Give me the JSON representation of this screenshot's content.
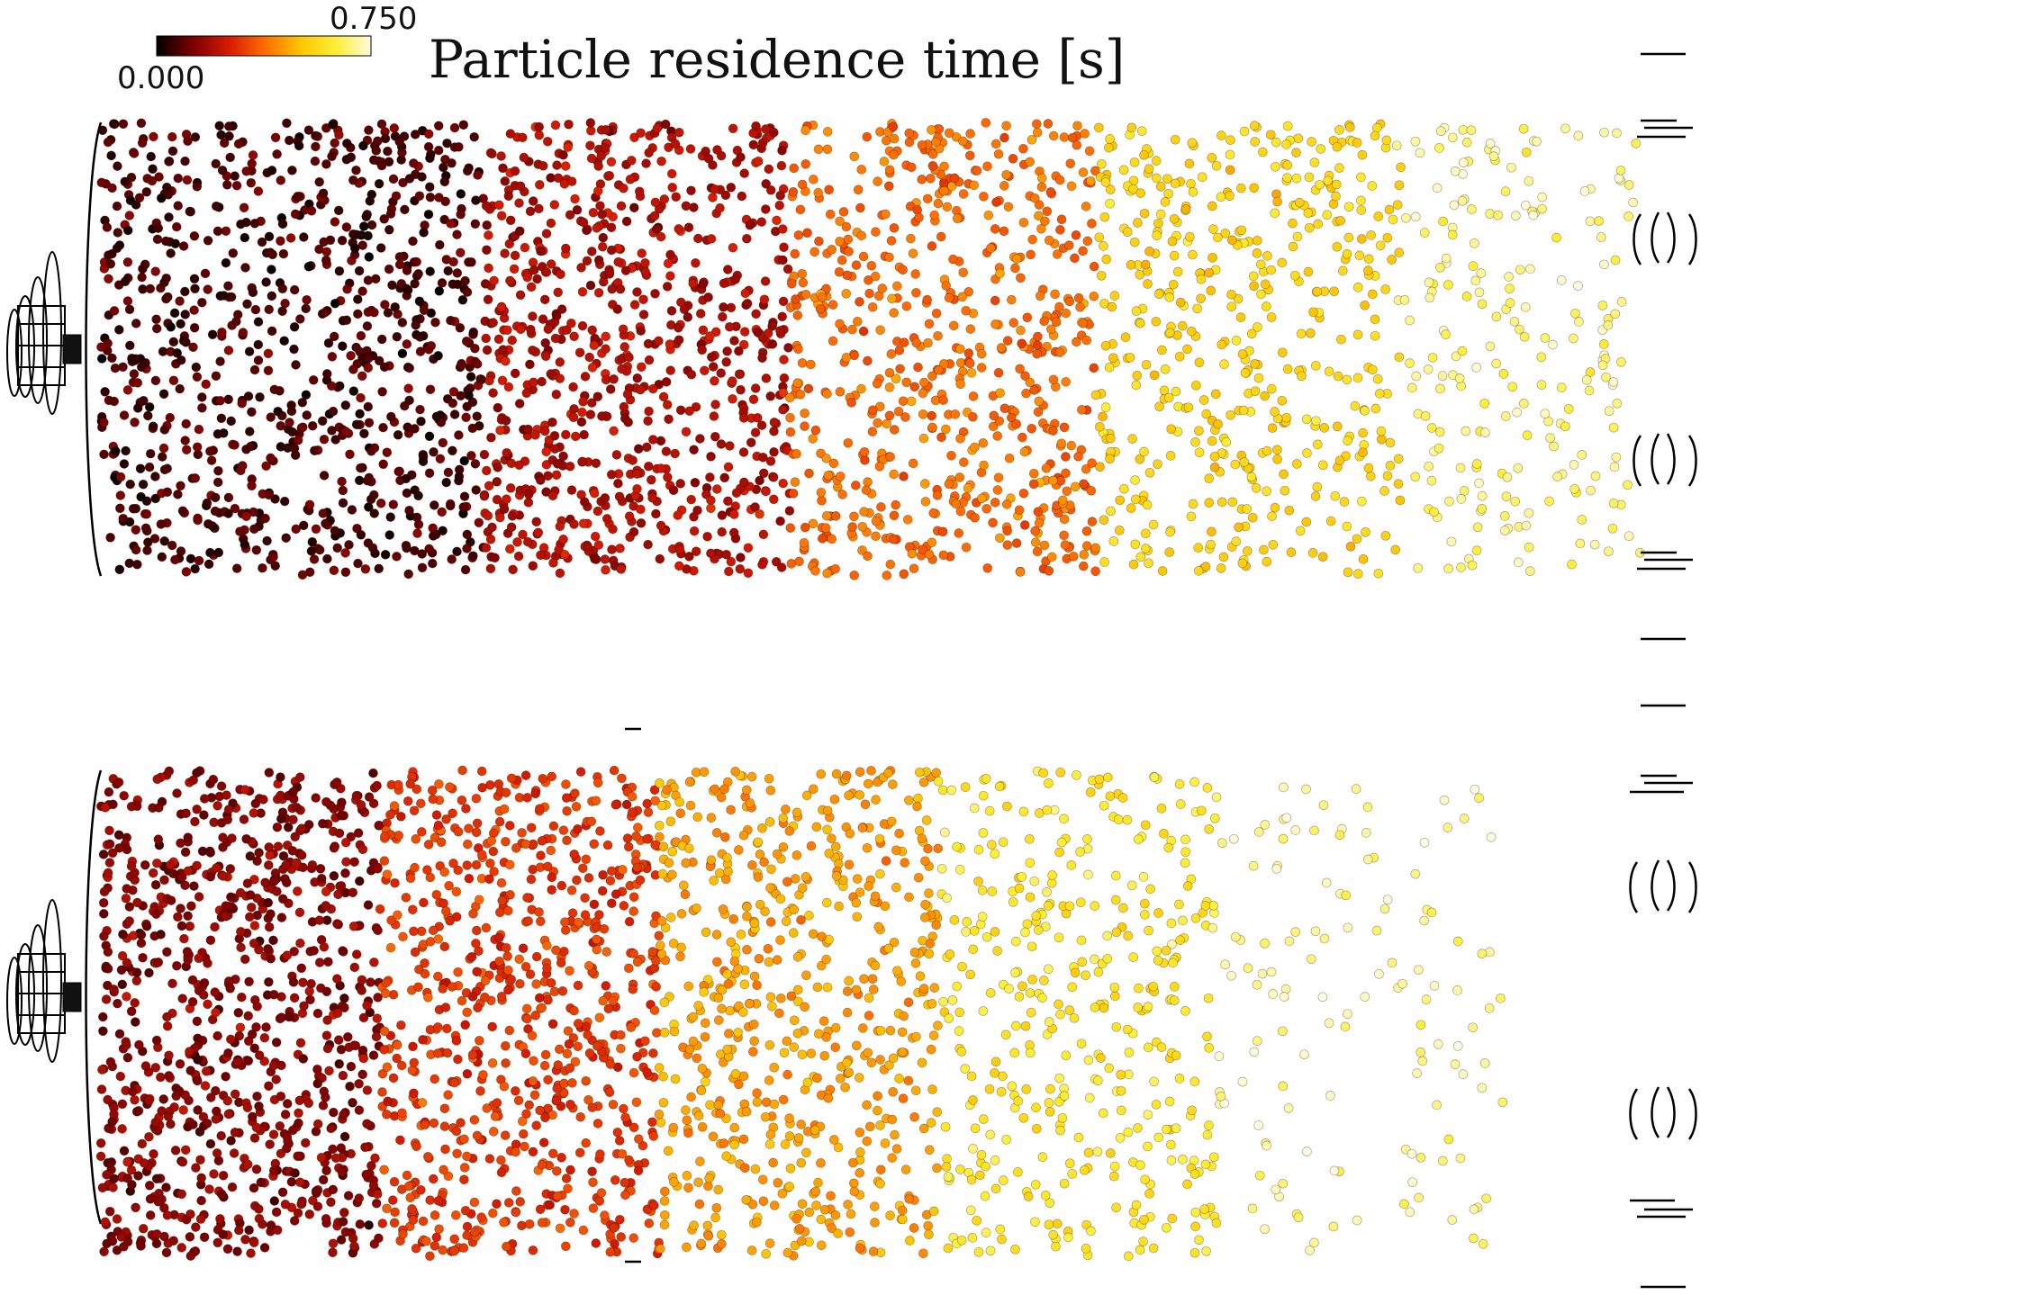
{
  "chart_data": {
    "type": "scatter",
    "title": "Particle residence time [s]",
    "colorbar": {
      "min": 0.0,
      "max": 0.75,
      "min_label": "0.000",
      "max_label": "0.750",
      "colormap": [
        "#000000",
        "#7a0000",
        "#d41a00",
        "#ff6a00",
        "#ffc400",
        "#ffee33",
        "#fffbe0"
      ]
    },
    "panels": [
      {
        "name": "",
        "particle_distribution": [
          {
            "x_range": [
              0.0,
              0.25
            ],
            "mean_time": 0.08,
            "density": 1.0
          },
          {
            "x_range": [
              0.25,
              0.45
            ],
            "mean_time": 0.2,
            "density": 0.9
          },
          {
            "x_range": [
              0.45,
              0.65
            ],
            "mean_time": 0.38,
            "density": 0.75
          },
          {
            "x_range": [
              0.65,
              0.85
            ],
            "mean_time": 0.55,
            "density": 0.55
          },
          {
            "x_range": [
              0.85,
              1.0
            ],
            "mean_time": 0.68,
            "density": 0.25
          }
        ]
      },
      {
        "name": "",
        "particle_distribution": [
          {
            "x_range": [
              0.0,
              0.2
            ],
            "mean_time": 0.15,
            "density": 1.0
          },
          {
            "x_range": [
              0.2,
              0.4
            ],
            "mean_time": 0.3,
            "density": 0.85
          },
          {
            "x_range": [
              0.4,
              0.6
            ],
            "mean_time": 0.45,
            "density": 0.7
          },
          {
            "x_range": [
              0.6,
              0.8
            ],
            "mean_time": 0.6,
            "density": 0.45
          },
          {
            "x_range": [
              0.8,
              1.0
            ],
            "mean_time": 0.7,
            "density": 0.15
          }
        ]
      }
    ]
  }
}
